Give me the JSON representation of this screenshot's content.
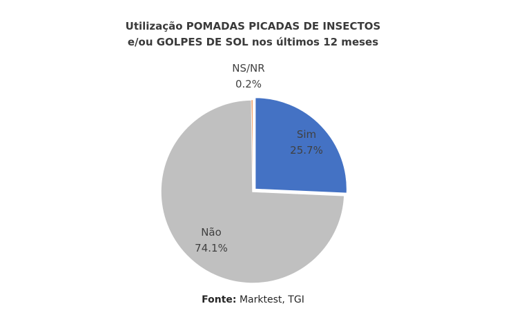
{
  "chart_data": {
    "type": "pie",
    "title_lines": [
      "Utilização  POMADAS PICADAS DE INSECTOS",
      "e/ou GOLPES DE SOL nos últimos 12 meses"
    ],
    "slices": [
      {
        "label": "Sim",
        "value": 25.7,
        "value_label": "25.7%",
        "color": "#4472C4",
        "exploded": true
      },
      {
        "label": "Não",
        "value": 74.1,
        "value_label": "74.1%",
        "color": "#C0C0C0",
        "exploded": false
      },
      {
        "label": "NS/NR",
        "value": 0.2,
        "value_label": "0.2%",
        "color": "#ED7D31",
        "exploded": false
      }
    ],
    "source_label": "Fonte:",
    "source_text": " Marktest, TGI"
  }
}
